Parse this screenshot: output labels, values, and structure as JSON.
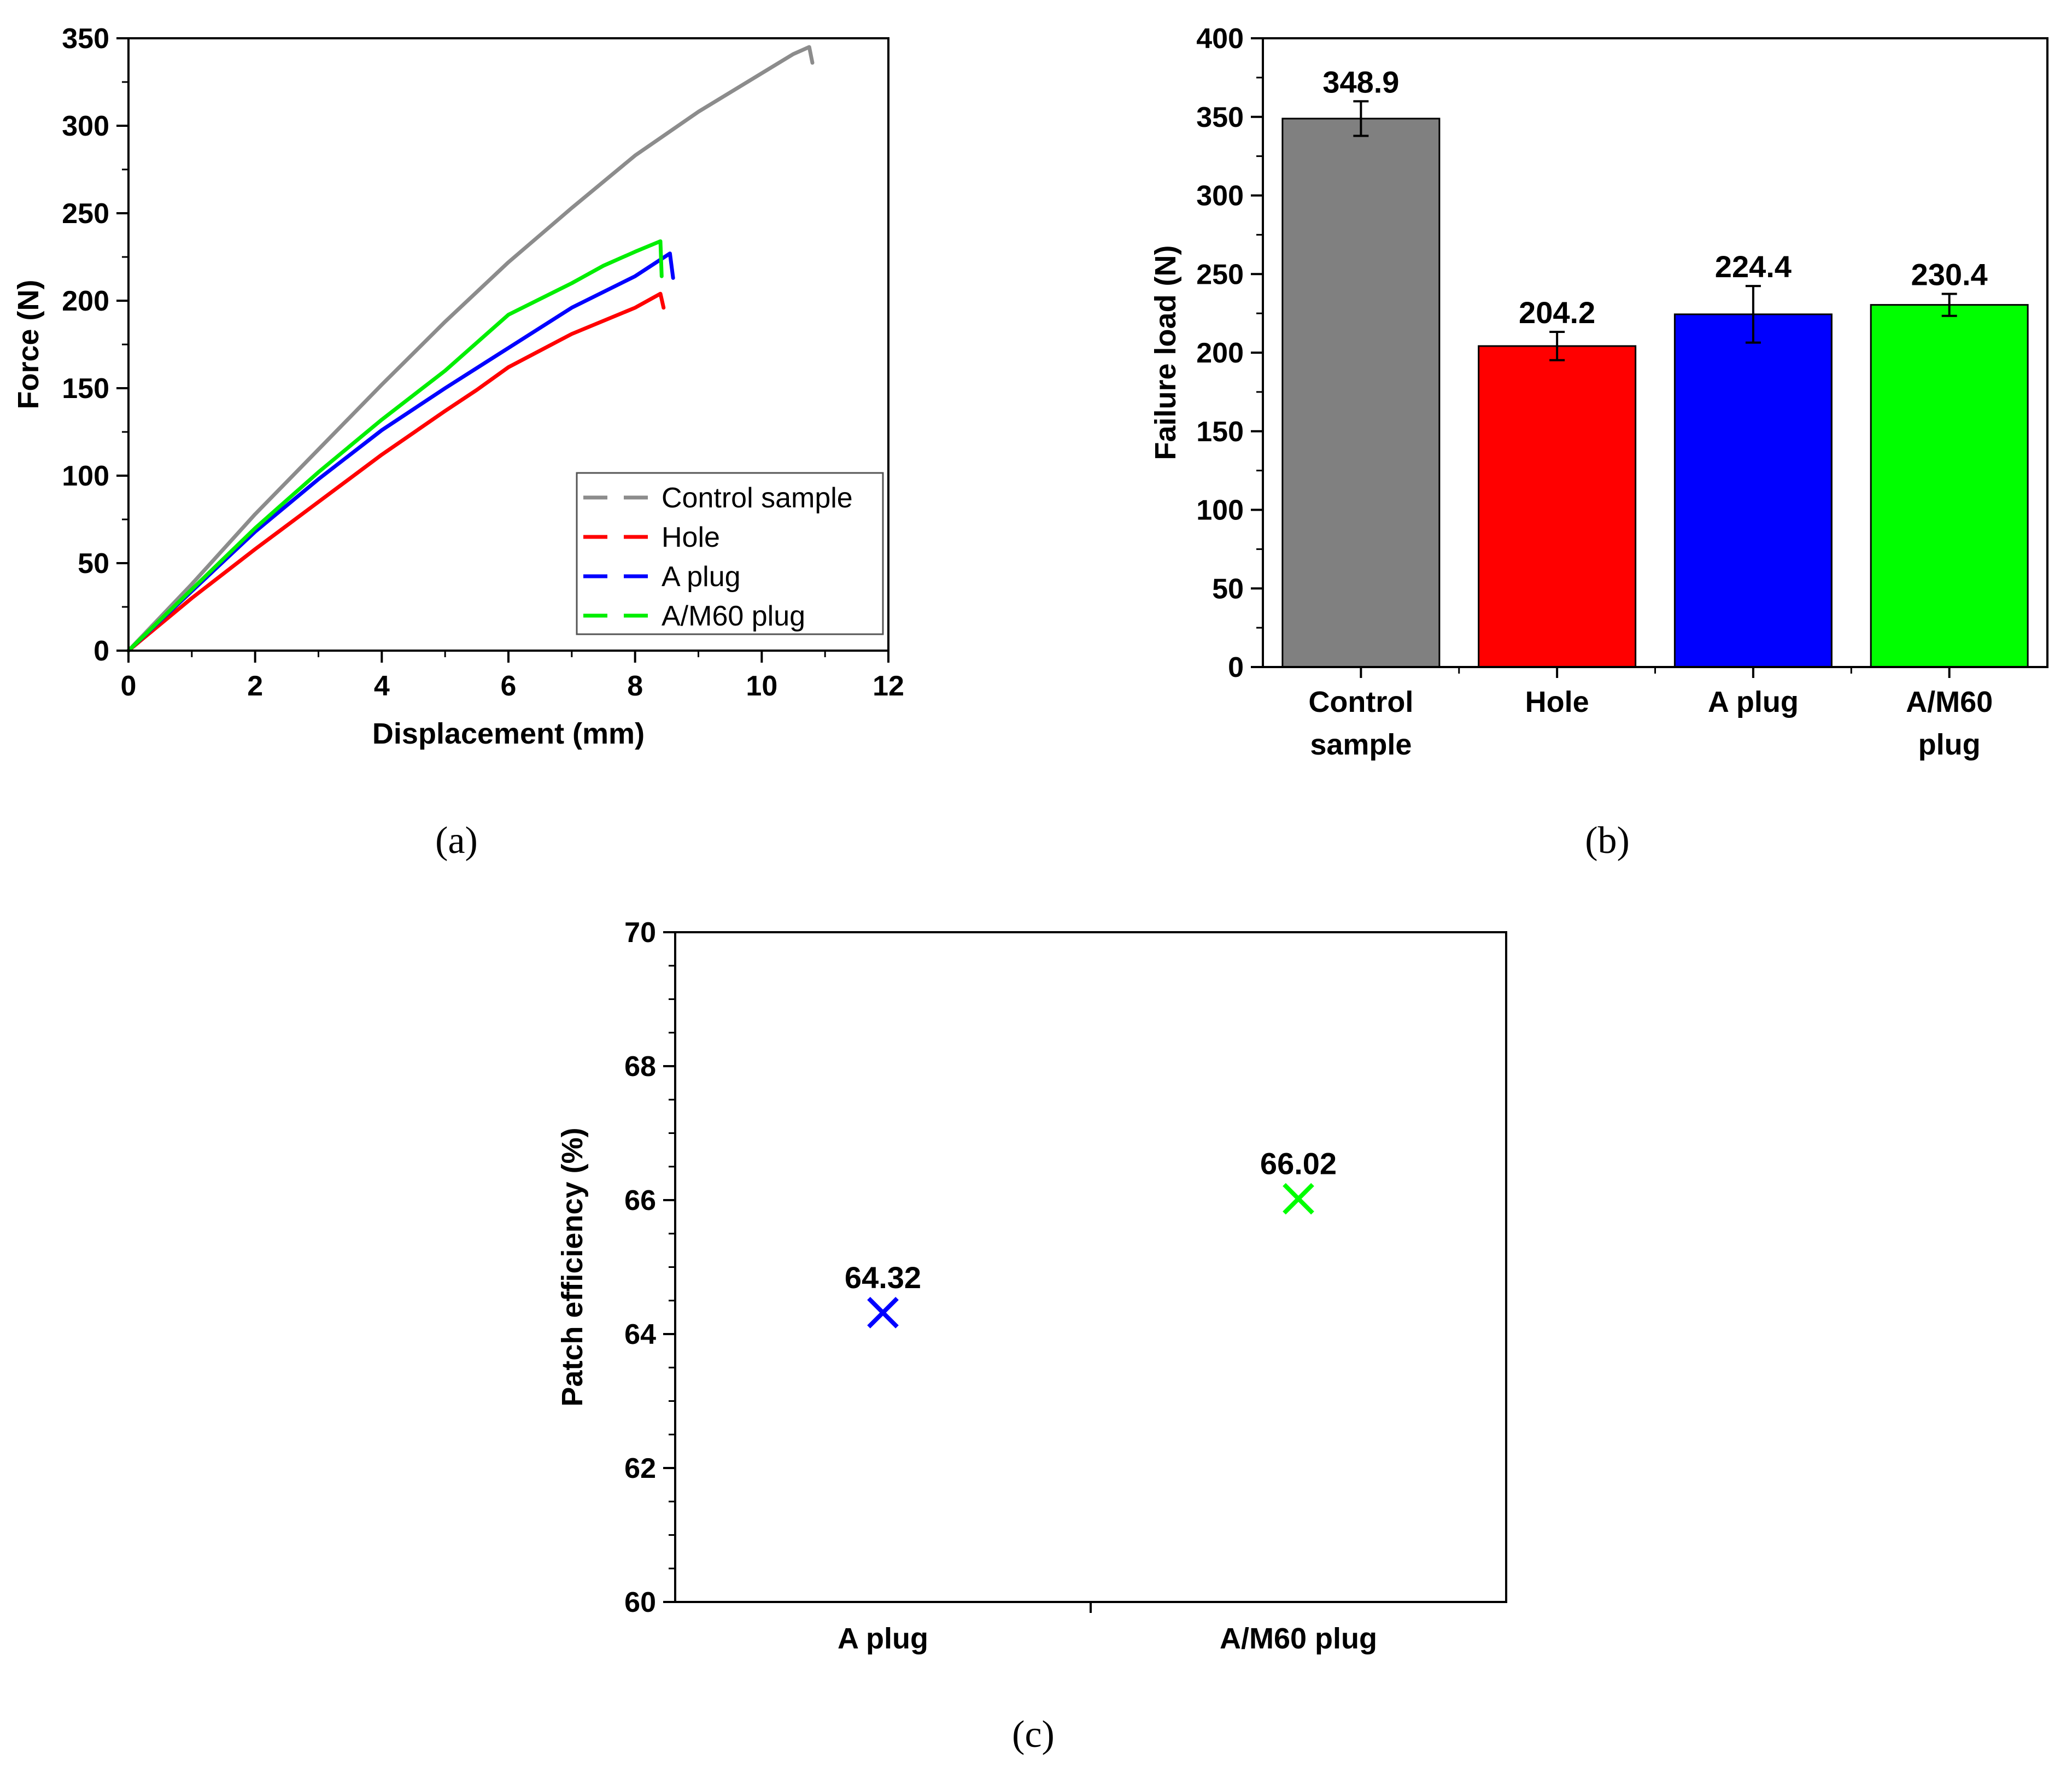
{
  "chart_data": [
    {
      "id": "a",
      "type": "line",
      "xlabel": "Displacement (mm)",
      "ylabel": "Force (N)",
      "xlim": [
        0,
        12
      ],
      "ylim": [
        0,
        350
      ],
      "xticks": [
        0,
        2,
        4,
        6,
        8,
        10,
        12
      ],
      "yticks": [
        0,
        50,
        100,
        150,
        200,
        250,
        300,
        350
      ],
      "legend_position": "bottom-right",
      "series": [
        {
          "name": "Control sample",
          "color": "#8c8c8c",
          "x": [
            0,
            1,
            2,
            3,
            4,
            5,
            6,
            7,
            8,
            9,
            10,
            10.5,
            10.75,
            10.8
          ],
          "y": [
            0,
            38,
            78,
            115,
            152,
            188,
            222,
            253,
            283,
            308,
            330,
            341,
            345,
            336
          ]
        },
        {
          "name": "Hole",
          "color": "#ff0000",
          "x": [
            0,
            1,
            2,
            3,
            4,
            5,
            5.5,
            6,
            7,
            8,
            8.4,
            8.45
          ],
          "y": [
            0,
            30,
            58,
            85,
            112,
            137,
            149,
            162,
            181,
            196,
            204,
            196
          ]
        },
        {
          "name": "A plug",
          "color": "#0000ff",
          "x": [
            0,
            1,
            2,
            3,
            4,
            5,
            6,
            7,
            8,
            8.55,
            8.6
          ],
          "y": [
            0,
            34,
            68,
            98,
            126,
            150,
            173,
            196,
            214,
            227,
            213
          ]
        },
        {
          "name": "A/M60 plug",
          "color": "#00ee00",
          "x": [
            0,
            1,
            2,
            3,
            4,
            5,
            6,
            7,
            7.5,
            8,
            8.4,
            8.42
          ],
          "y": [
            0,
            35,
            70,
            102,
            132,
            160,
            192,
            210,
            220,
            228,
            234,
            214
          ]
        }
      ]
    },
    {
      "id": "b",
      "type": "bar",
      "ylabel": "Failure load (N)",
      "ylim": [
        0,
        400
      ],
      "yticks": [
        0,
        50,
        100,
        150,
        200,
        250,
        300,
        350,
        400
      ],
      "categories": [
        [
          "Control",
          "sample"
        ],
        [
          "Hole"
        ],
        [
          "A plug"
        ],
        [
          "A/M60",
          "plug"
        ]
      ],
      "values": [
        348.9,
        204.2,
        224.4,
        230.4
      ],
      "value_labels": [
        "348.9",
        "204.2",
        "224.4",
        "230.4"
      ],
      "errors": [
        11,
        9,
        18,
        7
      ],
      "colors": [
        "#808080",
        "#ff0000",
        "#0000ff",
        "#00ff00"
      ]
    },
    {
      "id": "c",
      "type": "scatter",
      "ylabel": "Patch efficiency (%)",
      "ylim": [
        60,
        70
      ],
      "yticks": [
        60,
        62,
        64,
        66,
        68,
        70
      ],
      "categories": [
        "A plug",
        "A/M60 plug"
      ],
      "values": [
        64.32,
        66.02
      ],
      "value_labels": [
        "64.32",
        "66.02"
      ],
      "colors": [
        "#0000ff",
        "#00ff00"
      ]
    }
  ],
  "captions": {
    "a": "(a)",
    "b": "(b)",
    "c": "(c)"
  }
}
